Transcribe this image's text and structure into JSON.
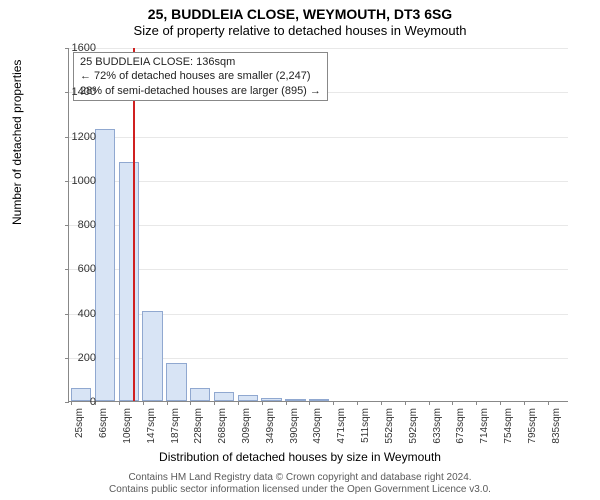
{
  "title_main": "25, BUDDLEIA CLOSE, WEYMOUTH, DT3 6SG",
  "title_sub": "Size of property relative to detached houses in Weymouth",
  "chart": {
    "type": "histogram",
    "y_label": "Number of detached properties",
    "x_label": "Distribution of detached houses by size in Weymouth",
    "ylim": [
      0,
      1600
    ],
    "ytick_step": 200,
    "x_categories": [
      "25sqm",
      "66sqm",
      "106sqm",
      "147sqm",
      "187sqm",
      "228sqm",
      "268sqm",
      "309sqm",
      "349sqm",
      "390sqm",
      "430sqm",
      "471sqm",
      "511sqm",
      "552sqm",
      "592sqm",
      "633sqm",
      "673sqm",
      "714sqm",
      "754sqm",
      "795sqm",
      "835sqm"
    ],
    "values": [
      60,
      1230,
      1080,
      405,
      170,
      60,
      40,
      25,
      15,
      10,
      5,
      0,
      0,
      0,
      0,
      0,
      0,
      0,
      0,
      0
    ],
    "bar_fill": "#d8e4f5",
    "bar_border": "#90a8d0",
    "background_color": "#ffffff",
    "grid_color": "#e8e8e8",
    "axis_color": "#888888",
    "reference_line": {
      "position_category_index": 2.7,
      "color": "#d02020",
      "width": 2
    },
    "annotation": {
      "lines": [
        "25 BUDDLEIA CLOSE: 136sqm",
        "← 72% of detached houses are smaller (2,247)",
        "28% of semi-detached houses are larger (895) →"
      ],
      "border_color": "#888888",
      "background": "#ffffff",
      "font_size": 11
    },
    "title_fontsize": 14,
    "label_fontsize": 12,
    "tick_fontsize": 11
  },
  "footer_line1": "Contains HM Land Registry data © Crown copyright and database right 2024.",
  "footer_line2": "Contains public sector information licensed under the Open Government Licence v3.0."
}
